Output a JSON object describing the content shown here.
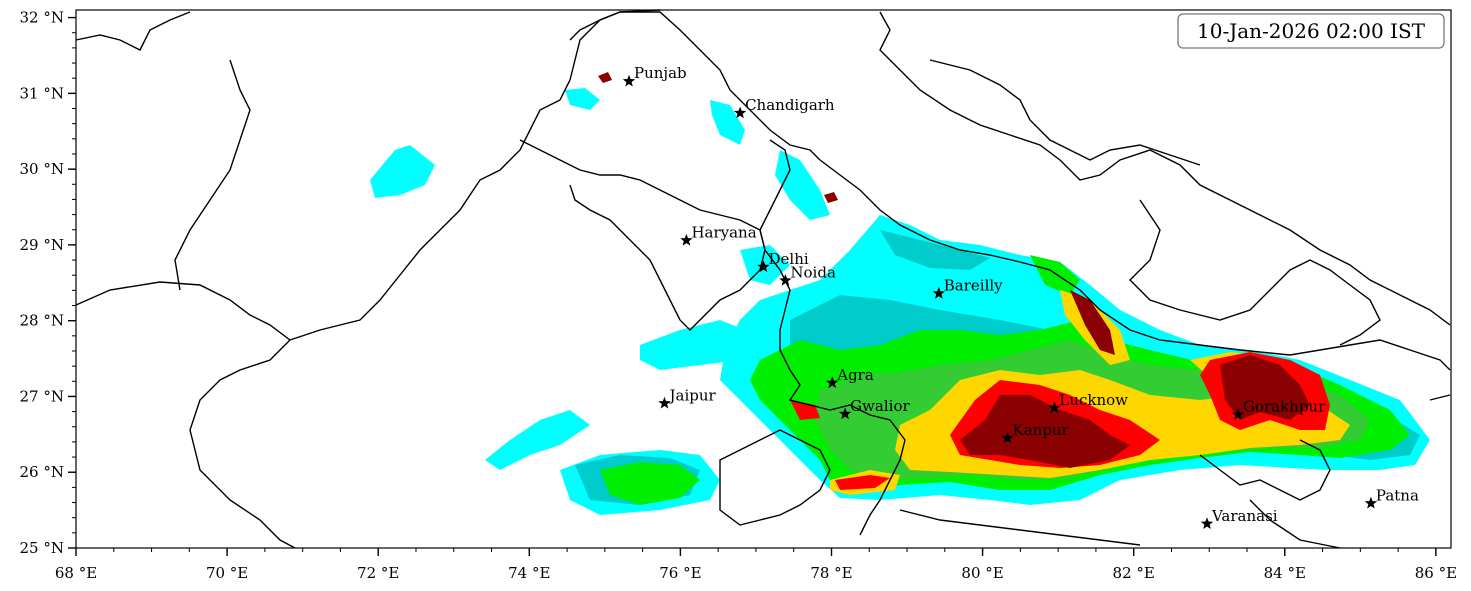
{
  "map": {
    "timestamp": "10-Jan-2026 02:00 IST",
    "lon_ticks": [
      {
        "value": 68,
        "label": "68 °E"
      },
      {
        "value": 70,
        "label": "70 °E"
      },
      {
        "value": 72,
        "label": "72 °E"
      },
      {
        "value": 74,
        "label": "74 °E"
      },
      {
        "value": 76,
        "label": "76 °E"
      },
      {
        "value": 78,
        "label": "78 °E"
      },
      {
        "value": 80,
        "label": "80 °E"
      },
      {
        "value": 82,
        "label": "82 °E"
      },
      {
        "value": 84,
        "label": "84 °E"
      },
      {
        "value": 86,
        "label": "86 °E"
      }
    ],
    "lat_ticks": [
      {
        "value": 25,
        "label": "25 °N"
      },
      {
        "value": 26,
        "label": "26 °N"
      },
      {
        "value": 27,
        "label": "27 °N"
      },
      {
        "value": 28,
        "label": "28 °N"
      },
      {
        "value": 29,
        "label": "29 °N"
      },
      {
        "value": 30,
        "label": "30 °N"
      },
      {
        "value": 31,
        "label": "31 °N"
      },
      {
        "value": 32,
        "label": "32 °N"
      }
    ],
    "cities": [
      {
        "name": "Punjab",
        "lon": 75.32,
        "lat": 31.16
      },
      {
        "name": "Chandigarh",
        "lon": 76.79,
        "lat": 30.74
      },
      {
        "name": "Haryana",
        "lon": 76.08,
        "lat": 29.06
      },
      {
        "name": "Delhi",
        "lon": 77.1,
        "lat": 28.71
      },
      {
        "name": "Noida",
        "lon": 77.39,
        "lat": 28.53
      },
      {
        "name": "Bareilly",
        "lon": 79.42,
        "lat": 28.36
      },
      {
        "name": "Agra",
        "lon": 78.01,
        "lat": 27.18
      },
      {
        "name": "Jaipur",
        "lon": 75.79,
        "lat": 26.91
      },
      {
        "name": "Gwalior",
        "lon": 78.18,
        "lat": 26.77
      },
      {
        "name": "Lucknow",
        "lon": 80.95,
        "lat": 26.85
      },
      {
        "name": "Kanpur",
        "lon": 80.33,
        "lat": 26.45
      },
      {
        "name": "Gorakhpur",
        "lon": 83.38,
        "lat": 26.76
      },
      {
        "name": "Varanasi",
        "lon": 82.97,
        "lat": 25.32
      },
      {
        "name": "Patna",
        "lon": 85.14,
        "lat": 25.59
      }
    ],
    "fill_colors": [
      "#00ffff",
      "#00cccc",
      "#00ee00",
      "#33cc33",
      "#ffd700",
      "#ff0000",
      "#8b0000"
    ]
  }
}
